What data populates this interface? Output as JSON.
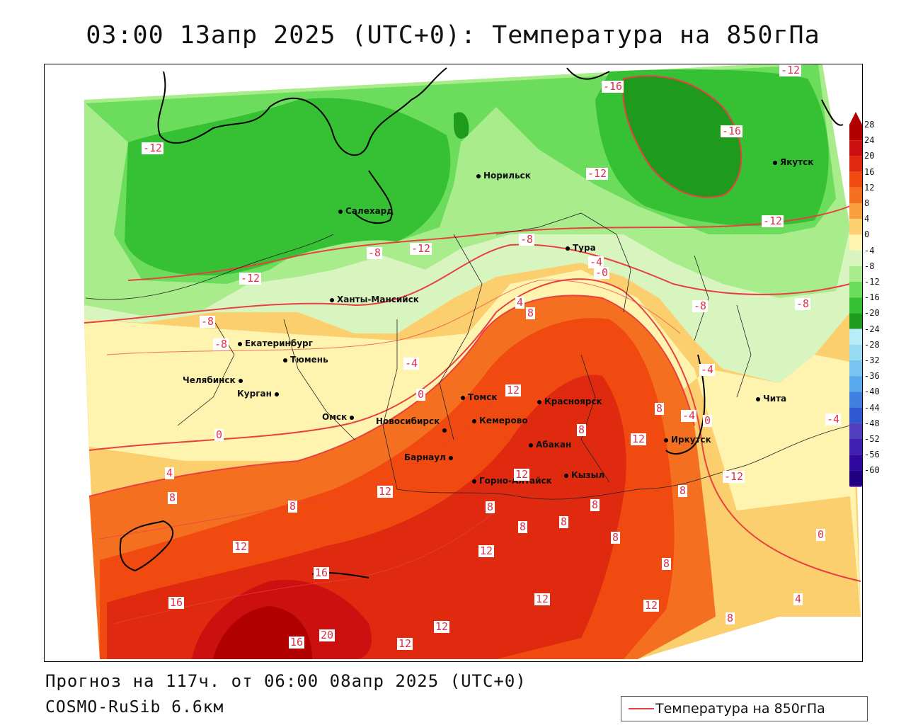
{
  "title": "03:00 13апр 2025 (UTC+0): Температура на 850гПа",
  "footer": {
    "forecast": "Прогноз на 117ч. от 06:00 08апр 2025 (UTC+0)",
    "model": "COSMO-RuSib 6.6км"
  },
  "legend": {
    "label": "Температура на 850гПа",
    "line_color": "#e84040"
  },
  "colorbar": {
    "labels": [
      "28",
      "24",
      "20",
      "16",
      "12",
      "8",
      "4",
      "0",
      "-4",
      "-8",
      "-12",
      "-16",
      "-20",
      "-24",
      "-28",
      "-32",
      "-36",
      "-40",
      "-44",
      "-48",
      "-52",
      "-56",
      "-60"
    ],
    "colors": [
      "#b00000",
      "#cc1010",
      "#e02a10",
      "#f04a10",
      "#f47020",
      "#f8a040",
      "#fcd070",
      "#fff3b0",
      "#d8f5c0",
      "#a8ec8c",
      "#6cdc5c",
      "#36c034",
      "#1e9a1c",
      "#b8ecf8",
      "#98dcf4",
      "#78c4f0",
      "#58a8ec",
      "#4080e0",
      "#3058d0",
      "#5040c0",
      "#4020b0",
      "#300aa0",
      "#200080"
    ]
  },
  "cities": [
    {
      "name": "Норильск"
    },
    {
      "name": "Якутск"
    },
    {
      "name": "Салехард"
    },
    {
      "name": "Тура"
    },
    {
      "name": "Ханты-Мансийск"
    },
    {
      "name": "Екатеринбург"
    },
    {
      "name": "Тюмень"
    },
    {
      "name": "Челябинск"
    },
    {
      "name": "Курган"
    },
    {
      "name": "Омск"
    },
    {
      "name": "Томск"
    },
    {
      "name": "Красноярск"
    },
    {
      "name": "Кемерово"
    },
    {
      "name": "Новосибирск"
    },
    {
      "name": "Абакан"
    },
    {
      "name": "Иркутск"
    },
    {
      "name": "Барнаул"
    },
    {
      "name": "Кызыл"
    },
    {
      "name": "Горно-Алтайск"
    },
    {
      "name": "Чита"
    }
  ],
  "contour_labels": [
    "-16",
    "-12",
    "-16",
    "-12",
    "-12",
    "-12",
    "-12",
    "-8",
    "-12",
    "-8",
    "-12",
    "-4",
    "-0",
    "-8",
    "-8",
    "-8",
    "-8",
    "-4",
    "4",
    "8",
    "-4",
    "0",
    "12",
    "0",
    "8",
    "-4",
    "0",
    "4",
    "-4",
    "8",
    "12",
    "8",
    "12",
    "4",
    "8",
    "12",
    "8",
    "8",
    "8",
    "8",
    "8",
    "8",
    "12",
    "12",
    "16",
    "12",
    "8",
    "16",
    "12",
    "12",
    "20",
    "16",
    "12",
    "0",
    "4",
    "8"
  ]
}
